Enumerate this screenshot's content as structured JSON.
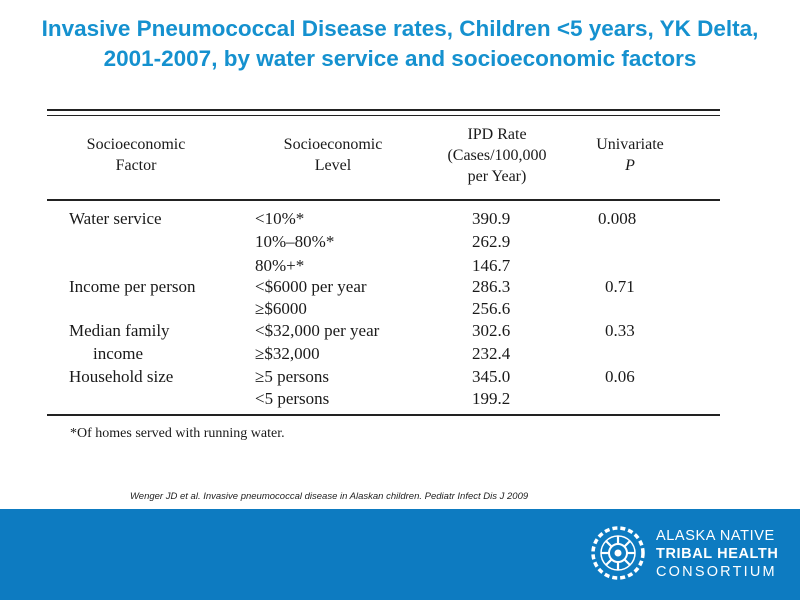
{
  "slide": {
    "title_line1": "Invasive Pneumococcal Disease rates, Children <5 years, YK Delta,",
    "title_line2": "2001-2007, by water service and socioeconomic factors"
  },
  "table": {
    "headers": {
      "factor": [
        "Socioeconomic",
        "Factor"
      ],
      "level": [
        "Socioeconomic",
        "Level"
      ],
      "rate": [
        "IPD Rate",
        "(Cases/100,000",
        "per Year)"
      ],
      "p": [
        "Univariate",
        "P"
      ]
    },
    "rows": [
      {
        "factor": "Water service",
        "level": "<10%*",
        "rate": "390.9",
        "p": "0.008"
      },
      {
        "factor": "",
        "level": "10%–80%*",
        "rate": "262.9",
        "p": ""
      },
      {
        "factor": "",
        "level": "80%+*",
        "rate": "146.7",
        "p": ""
      },
      {
        "factor": "Income per person",
        "level": "<$6000 per year",
        "rate": "286.3",
        "p": "0.71"
      },
      {
        "factor": "",
        "level": "≥$6000",
        "rate": "256.6",
        "p": ""
      },
      {
        "factor": "Median family",
        "level": "<$32,000 per year",
        "rate": "302.6",
        "p": "0.33"
      },
      {
        "factor": "income",
        "level": "≥$32,000",
        "rate": "232.4",
        "p": ""
      },
      {
        "factor": "Household size",
        "level": "≥5 persons",
        "rate": "345.0",
        "p": "0.06"
      },
      {
        "factor": "",
        "level": "<5 persons",
        "rate": "199.2",
        "p": ""
      }
    ],
    "footnote": "*Of homes served with running water."
  },
  "citation": "Wenger JD  et al. Invasive pneumococcal  disease in Alaskan children. Pediatr Infect Dis J 2009",
  "footer": {
    "org_line1": "ALASKA NATIVE",
    "org_line2": "TRIBAL HEALTH",
    "org_line3": "CONSORTIUM",
    "logo_icon": "anthc-logo-icon",
    "background_color": "#0d7bc1"
  }
}
